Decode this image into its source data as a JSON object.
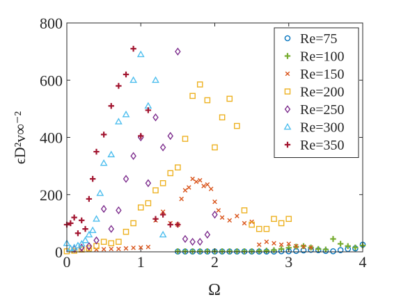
{
  "colors": {
    "Re=75": "#0072BD",
    "Re=100": "#77AC30",
    "Re=150": "#D95319",
    "Re=200": "#EDB120",
    "Re=250": "#7E2F8E",
    "Re=300": "#4DBEEE",
    "Re=350": "#A2142F"
  },
  "chart_data": {
    "type": "scatter",
    "title": "",
    "xlabel": "Ω",
    "ylabel": "ϵD²v∞⁻²",
    "xlim": [
      0,
      4
    ],
    "ylim": [
      0,
      800
    ],
    "xticks": [
      "0",
      "1",
      "2",
      "3",
      "4"
    ],
    "yticks": [
      "0",
      "200",
      "400",
      "600",
      "800"
    ],
    "grid": false,
    "legend_position": "top-right",
    "series": [
      {
        "name": "Re=75",
        "marker": "circle",
        "points": [
          [
            1.5,
            1
          ],
          [
            1.6,
            1
          ],
          [
            1.7,
            1
          ],
          [
            1.8,
            1
          ],
          [
            1.9,
            1
          ],
          [
            2.0,
            1
          ],
          [
            2.1,
            1
          ],
          [
            2.2,
            1
          ],
          [
            2.3,
            1
          ],
          [
            2.4,
            1
          ],
          [
            2.5,
            1
          ],
          [
            2.6,
            1
          ],
          [
            2.7,
            1
          ],
          [
            2.8,
            1
          ],
          [
            2.9,
            2
          ],
          [
            3.0,
            2
          ],
          [
            3.1,
            3
          ],
          [
            3.2,
            5
          ],
          [
            3.3,
            7
          ],
          [
            3.4,
            6
          ],
          [
            3.5,
            3
          ],
          [
            3.6,
            2
          ],
          [
            3.7,
            6
          ],
          [
            3.8,
            10
          ],
          [
            3.9,
            12
          ],
          [
            4.0,
            25
          ]
        ]
      },
      {
        "name": "Re=100",
        "marker": "plus",
        "points": [
          [
            1.5,
            2
          ],
          [
            1.6,
            2
          ],
          [
            1.7,
            2
          ],
          [
            1.8,
            2
          ],
          [
            1.9,
            2
          ],
          [
            2.0,
            2
          ],
          [
            2.1,
            2
          ],
          [
            2.2,
            2
          ],
          [
            2.3,
            2
          ],
          [
            2.4,
            2
          ],
          [
            2.5,
            2
          ],
          [
            2.6,
            3
          ],
          [
            2.7,
            4
          ],
          [
            2.8,
            6
          ],
          [
            2.9,
            10
          ],
          [
            3.0,
            14
          ],
          [
            3.1,
            18
          ],
          [
            3.2,
            20
          ],
          [
            3.3,
            15
          ],
          [
            3.4,
            10
          ],
          [
            3.5,
            8
          ],
          [
            3.6,
            45
          ],
          [
            3.7,
            28
          ],
          [
            3.8,
            20
          ],
          [
            3.9,
            15
          ],
          [
            4.0,
            22
          ]
        ]
      },
      {
        "name": "Re=150",
        "marker": "x",
        "points": [
          [
            0.1,
            5
          ],
          [
            0.2,
            6
          ],
          [
            0.3,
            7
          ],
          [
            0.4,
            8
          ],
          [
            0.5,
            9
          ],
          [
            0.6,
            10
          ],
          [
            0.7,
            10
          ],
          [
            0.8,
            12
          ],
          [
            0.9,
            14
          ],
          [
            1.0,
            15
          ],
          [
            1.1,
            17
          ],
          [
            1.2,
            110
          ],
          [
            1.3,
            140
          ],
          [
            1.4,
            100
          ],
          [
            1.5,
            95
          ],
          [
            1.55,
            185
          ],
          [
            1.6,
            215
          ],
          [
            1.65,
            225
          ],
          [
            1.7,
            255
          ],
          [
            1.75,
            245
          ],
          [
            1.8,
            250
          ],
          [
            1.85,
            230
          ],
          [
            1.9,
            235
          ],
          [
            1.95,
            220
          ],
          [
            2.0,
            175
          ],
          [
            2.05,
            145
          ],
          [
            2.1,
            120
          ],
          [
            2.2,
            110
          ],
          [
            2.3,
            125
          ],
          [
            2.4,
            100
          ],
          [
            2.5,
            105
          ],
          [
            2.6,
            25
          ],
          [
            2.7,
            35
          ],
          [
            2.8,
            30
          ],
          [
            2.9,
            25
          ],
          [
            3.0,
            28
          ],
          [
            3.1,
            20
          ],
          [
            3.2,
            18
          ],
          [
            3.3,
            15
          ]
        ]
      },
      {
        "name": "Re=200",
        "marker": "square",
        "points": [
          [
            0,
            2
          ],
          [
            0.1,
            4
          ],
          [
            0.2,
            8
          ],
          [
            0.3,
            12
          ],
          [
            0.4,
            20
          ],
          [
            0.5,
            35
          ],
          [
            0.6,
            30
          ],
          [
            0.7,
            35
          ],
          [
            0.8,
            70
          ],
          [
            0.9,
            100
          ],
          [
            1.0,
            155
          ],
          [
            1.1,
            170
          ],
          [
            1.2,
            215
          ],
          [
            1.3,
            240
          ],
          [
            1.4,
            275
          ],
          [
            1.5,
            295
          ],
          [
            1.6,
            395
          ],
          [
            1.7,
            545
          ],
          [
            1.8,
            585
          ],
          [
            1.9,
            530
          ],
          [
            2.0,
            365
          ],
          [
            2.1,
            470
          ],
          [
            2.2,
            535
          ],
          [
            2.3,
            440
          ],
          [
            2.4,
            145
          ],
          [
            2.5,
            95
          ],
          [
            2.6,
            80
          ],
          [
            2.7,
            80
          ],
          [
            2.8,
            115
          ],
          [
            2.9,
            100
          ],
          [
            3.0,
            115
          ]
        ]
      },
      {
        "name": "Re=250",
        "marker": "diamond",
        "points": [
          [
            0.1,
            10
          ],
          [
            0.2,
            15
          ],
          [
            0.3,
            20
          ],
          [
            0.4,
            40
          ],
          [
            0.5,
            150
          ],
          [
            0.6,
            80
          ],
          [
            0.7,
            145
          ],
          [
            0.8,
            255
          ],
          [
            0.9,
            335
          ],
          [
            1.0,
            400
          ],
          [
            1.1,
            240
          ],
          [
            1.2,
            470
          ],
          [
            1.3,
            365
          ],
          [
            1.4,
            405
          ],
          [
            1.5,
            700
          ],
          [
            1.6,
            45
          ],
          [
            1.7,
            35
          ],
          [
            1.8,
            35
          ],
          [
            1.9,
            60
          ],
          [
            2.0,
            130
          ]
        ]
      },
      {
        "name": "Re=300",
        "marker": "triangle",
        "points": [
          [
            0,
            30
          ],
          [
            0.05,
            12
          ],
          [
            0.1,
            15
          ],
          [
            0.15,
            22
          ],
          [
            0.2,
            28
          ],
          [
            0.25,
            40
          ],
          [
            0.3,
            60
          ],
          [
            0.35,
            75
          ],
          [
            0.4,
            115
          ],
          [
            0.45,
            205
          ],
          [
            0.5,
            310
          ],
          [
            0.6,
            340
          ],
          [
            0.7,
            455
          ],
          [
            0.8,
            480
          ],
          [
            0.9,
            600
          ],
          [
            1.0,
            690
          ],
          [
            1.1,
            510
          ],
          [
            1.2,
            600
          ],
          [
            1.3,
            60
          ]
        ]
      },
      {
        "name": "Re=350",
        "marker": "plus",
        "points": [
          [
            0,
            95
          ],
          [
            0.05,
            100
          ],
          [
            0.1,
            120
          ],
          [
            0.15,
            65
          ],
          [
            0.2,
            110
          ],
          [
            0.25,
            80
          ],
          [
            0.3,
            185
          ],
          [
            0.35,
            255
          ],
          [
            0.4,
            350
          ],
          [
            0.5,
            410
          ],
          [
            0.6,
            510
          ],
          [
            0.7,
            580
          ],
          [
            0.8,
            620
          ],
          [
            0.9,
            710
          ],
          [
            1.0,
            405
          ],
          [
            1.1,
            495
          ],
          [
            1.2,
            115
          ],
          [
            1.3,
            130
          ],
          [
            1.4,
            95
          ],
          [
            1.5,
            95
          ]
        ]
      }
    ]
  }
}
